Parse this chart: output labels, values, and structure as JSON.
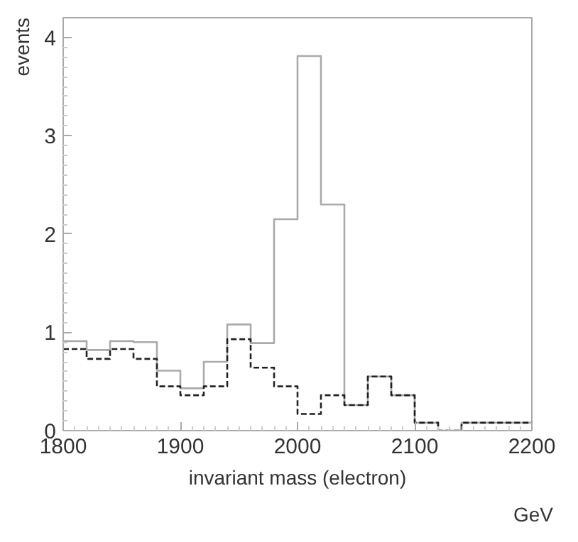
{
  "chart_data": {
    "type": "histogram",
    "xlabel": "invariant mass (electron)",
    "ylabel": "events",
    "annotations": [
      "GeV"
    ],
    "bins": [
      1800,
      1820,
      1840,
      1860,
      1880,
      1900,
      1920,
      1940,
      1960,
      1980,
      2000,
      2020,
      2040,
      2060,
      2080,
      2100,
      2120,
      2140,
      2160,
      2180,
      2200
    ],
    "series": [
      {
        "color": "#aaaaaa",
        "line_style": "solid",
        "values": [
          0.91,
          0.82,
          0.91,
          0.9,
          0.61,
          0.43,
          0.7,
          1.08,
          0.89,
          2.15,
          3.81,
          2.3,
          0.26,
          0.55,
          0.36,
          0.08,
          0,
          0.08,
          0.08,
          0.08
        ]
      },
      {
        "color": "#222222",
        "line_style": "dashed",
        "values": [
          0.83,
          0.73,
          0.83,
          0.73,
          0.45,
          0.36,
          0.45,
          0.93,
          0.64,
          0.45,
          0.17,
          0.36,
          0.26,
          0.55,
          0.36,
          0.08,
          0,
          0.08,
          0.08,
          0.08
        ]
      }
    ],
    "xlim": [
      1800,
      2200
    ],
    "xticks": [
      1800,
      1900,
      2000,
      2100,
      2200
    ],
    "ylim": [
      0,
      4.2
    ],
    "yticks": [
      0,
      1,
      2,
      3,
      4
    ],
    "grid": false
  }
}
